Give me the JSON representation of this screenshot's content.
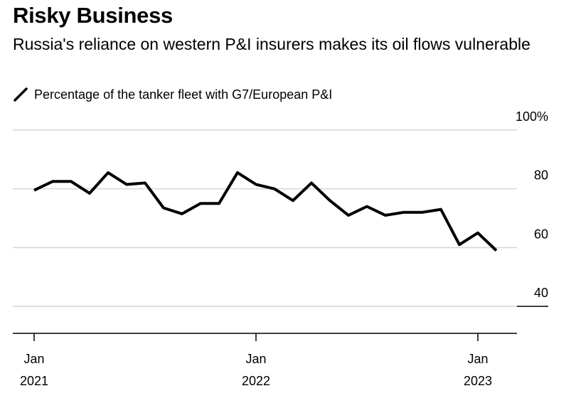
{
  "title": "Risky Business",
  "subtitle": "Russia's reliance on western P&I insurers makes its oil flows vulnerable",
  "chart_data": {
    "type": "line",
    "title": "Risky Business",
    "subtitle": "Russia's reliance on western P&I insurers makes its oil flows vulnerable",
    "xlabel": "",
    "ylabel": "",
    "ylim": [
      40,
      100
    ],
    "y_ticks": [
      {
        "value": 100,
        "label": "100%"
      },
      {
        "value": 80,
        "label": "80"
      },
      {
        "value": 60,
        "label": "60"
      },
      {
        "value": 40,
        "label": "40"
      }
    ],
    "x_ticks": [
      {
        "value": "2021-01",
        "month": "Jan",
        "year": "2021"
      },
      {
        "value": "2022-01",
        "month": "Jan",
        "year": "2022"
      },
      {
        "value": "2023-01",
        "month": "Jan",
        "year": "2023"
      }
    ],
    "xlim": [
      "2020-11",
      "2023-06"
    ],
    "grid": true,
    "legend_position": "top-left",
    "series": [
      {
        "name": "Percentage of the tanker fleet with G7/European P&I",
        "color": "#000000",
        "x": [
          "2021-01",
          "2021-02",
          "2021-03",
          "2021-04",
          "2021-05",
          "2021-06",
          "2021-07",
          "2021-08",
          "2021-09",
          "2021-10",
          "2021-11",
          "2021-12",
          "2022-01",
          "2022-02",
          "2022-03",
          "2022-04",
          "2022-05",
          "2022-06",
          "2022-07",
          "2022-08",
          "2022-09",
          "2022-10",
          "2022-11",
          "2022-12",
          "2023-01",
          "2023-02"
        ],
        "values": [
          79.5,
          82.5,
          82.5,
          78.5,
          85.5,
          81.5,
          82,
          73.5,
          71.5,
          75,
          75,
          85.5,
          81.5,
          80,
          76,
          82,
          76,
          71,
          74,
          71,
          72,
          72,
          73,
          61,
          65,
          59
        ]
      }
    ]
  }
}
